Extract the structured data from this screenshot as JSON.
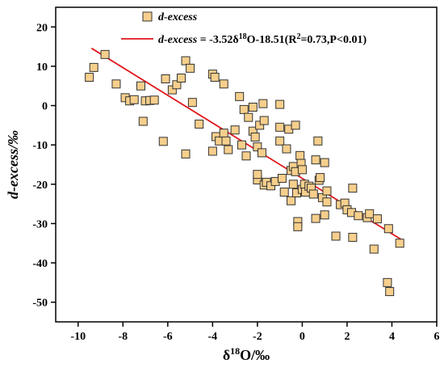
{
  "chart_data": {
    "type": "scatter",
    "xlabel": "δ18O/‰",
    "ylabel": "d-excess/‰",
    "xlim": [
      -11,
      6
    ],
    "ylim": [
      -55,
      25
    ],
    "x_ticks": [
      -10,
      -8,
      -6,
      -4,
      -2,
      0,
      2,
      4,
      6
    ],
    "y_ticks": [
      20,
      10,
      0,
      -10,
      -20,
      -30,
      -40,
      -50
    ],
    "x_tick_labels": [
      "-10",
      "-8",
      "-6",
      "-4",
      "-2",
      "0",
      "2",
      "4",
      "6"
    ],
    "y_tick_labels": [
      "20",
      "10",
      "0",
      "-10",
      "-20",
      "-30",
      "-40",
      "-50"
    ],
    "marker_fill": "#F6CF8C",
    "marker_edge": "#333333",
    "line_color": "#E0161B",
    "legend": {
      "placement": "top-right",
      "series_label": "d-excess",
      "fit_label_italic": "d-excess",
      "fit_label_eq": " = -3.52δ",
      "fit_label_sup1": "18",
      "fit_label_mid": "O-18.51(R",
      "fit_label_sup2": "2",
      "fit_label_tail": "=0.73,P<0.01)"
    },
    "series": [
      {
        "name": "d-excess",
        "points": [
          [
            -9.5,
            7.2
          ],
          [
            -9.3,
            9.7
          ],
          [
            -8.8,
            13.0
          ],
          [
            -8.3,
            5.5
          ],
          [
            -7.9,
            2.0
          ],
          [
            -7.7,
            1.2
          ],
          [
            -7.5,
            1.5
          ],
          [
            -7.2,
            5.0
          ],
          [
            -7.1,
            -4.0
          ],
          [
            -7.0,
            1.2
          ],
          [
            -6.8,
            1.3
          ],
          [
            -6.6,
            1.4
          ],
          [
            -6.2,
            -9.1
          ],
          [
            -6.1,
            6.8
          ],
          [
            -5.8,
            4.0
          ],
          [
            -5.6,
            5.3
          ],
          [
            -5.4,
            7.0
          ],
          [
            -5.2,
            11.4
          ],
          [
            -5.2,
            -12.3
          ],
          [
            -5.0,
            9.5
          ],
          [
            -4.9,
            0.8
          ],
          [
            -4.6,
            -4.7
          ],
          [
            -4.0,
            8.0
          ],
          [
            -4.0,
            -11.6
          ],
          [
            -3.9,
            7.2
          ],
          [
            -3.85,
            -7.9
          ],
          [
            -3.7,
            -9.0
          ],
          [
            -3.5,
            5.5
          ],
          [
            -3.5,
            -7.0
          ],
          [
            -3.4,
            -9.0
          ],
          [
            -3.3,
            -11.2
          ],
          [
            -3.0,
            -6.2
          ],
          [
            -2.8,
            2.3
          ],
          [
            -2.7,
            -10.0
          ],
          [
            -2.6,
            -1.0
          ],
          [
            -2.5,
            -12.8
          ],
          [
            -2.4,
            -3.0
          ],
          [
            -2.2,
            -6.5
          ],
          [
            -2.2,
            -0.4
          ],
          [
            -2.1,
            -8.0
          ],
          [
            -2.0,
            -10.5
          ],
          [
            -2.0,
            -18.9
          ],
          [
            -2.0,
            -17.5
          ],
          [
            -1.9,
            -5.0
          ],
          [
            -1.8,
            -12.0
          ],
          [
            -1.75,
            0.5
          ],
          [
            -1.7,
            -3.8
          ],
          [
            -1.7,
            -20.2
          ],
          [
            -1.6,
            -19.5
          ],
          [
            -1.4,
            -20.4
          ],
          [
            -1.2,
            -19.3
          ],
          [
            -1.0,
            0.3
          ],
          [
            -1.0,
            -5.5
          ],
          [
            -1.0,
            -9.0
          ],
          [
            -0.9,
            -18.5
          ],
          [
            -0.8,
            -22.0
          ],
          [
            -0.7,
            -11.0
          ],
          [
            -0.6,
            -6.0
          ],
          [
            -0.5,
            -16.5
          ],
          [
            -0.5,
            -24.2
          ],
          [
            -0.4,
            -20.0
          ],
          [
            -0.4,
            -15.5
          ],
          [
            -0.3,
            -5.0
          ],
          [
            -0.3,
            -16.8
          ],
          [
            -0.25,
            -22.2
          ],
          [
            -0.2,
            -29.5
          ],
          [
            -0.2,
            -30.8
          ],
          [
            -0.1,
            -12.7
          ],
          [
            -0.05,
            -14.7
          ],
          [
            0.0,
            -16.3
          ],
          [
            0.0,
            -21.3
          ],
          [
            0.1,
            -20.0
          ],
          [
            0.15,
            -22.0
          ],
          [
            0.3,
            -20.5
          ],
          [
            0.4,
            -21.0
          ],
          [
            0.5,
            -22.5
          ],
          [
            0.6,
            -28.7
          ],
          [
            0.6,
            -13.8
          ],
          [
            0.7,
            -9.0
          ],
          [
            0.75,
            -19.0
          ],
          [
            0.8,
            -18.3
          ],
          [
            0.9,
            -23.4
          ],
          [
            1.0,
            -27.8
          ],
          [
            1.0,
            -14.5
          ],
          [
            1.1,
            -24.5
          ],
          [
            1.1,
            -21.7
          ],
          [
            1.5,
            -33.2
          ],
          [
            1.7,
            -25.2
          ],
          [
            1.9,
            -24.8
          ],
          [
            2.0,
            -26.5
          ],
          [
            2.2,
            -27.2
          ],
          [
            2.25,
            -21.0
          ],
          [
            2.25,
            -33.5
          ],
          [
            2.5,
            -28.0
          ],
          [
            2.9,
            -28.5
          ],
          [
            3.0,
            -27.5
          ],
          [
            3.2,
            -36.5
          ],
          [
            3.35,
            -28.8
          ],
          [
            3.8,
            -45.0
          ],
          [
            3.85,
            -31.3
          ],
          [
            3.9,
            -47.3
          ],
          [
            4.35,
            -35.0
          ]
        ]
      }
    ],
    "fit_line": {
      "slope": -3.52,
      "intercept": -18.51,
      "x_range": [
        -9.4,
        4.4
      ]
    }
  }
}
